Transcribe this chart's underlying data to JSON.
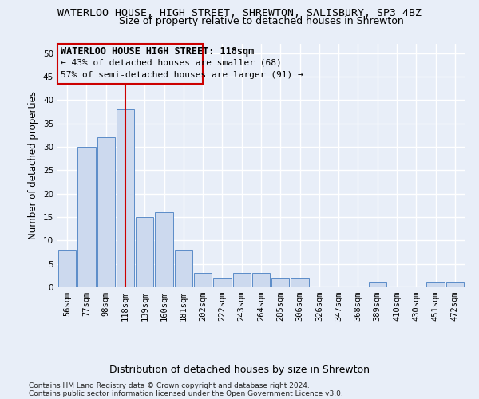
{
  "title1": "WATERLOO HOUSE, HIGH STREET, SHREWTON, SALISBURY, SP3 4BZ",
  "title2": "Size of property relative to detached houses in Shrewton",
  "xlabel": "Distribution of detached houses by size in Shrewton",
  "ylabel": "Number of detached properties",
  "footnote1": "Contains HM Land Registry data © Crown copyright and database right 2024.",
  "footnote2": "Contains public sector information licensed under the Open Government Licence v3.0.",
  "bar_labels": [
    "56sqm",
    "77sqm",
    "98sqm",
    "118sqm",
    "139sqm",
    "160sqm",
    "181sqm",
    "202sqm",
    "222sqm",
    "243sqm",
    "264sqm",
    "285sqm",
    "306sqm",
    "326sqm",
    "347sqm",
    "368sqm",
    "389sqm",
    "410sqm",
    "430sqm",
    "451sqm",
    "472sqm"
  ],
  "bar_values": [
    8,
    30,
    32,
    38,
    15,
    16,
    8,
    3,
    2,
    3,
    3,
    2,
    2,
    0,
    0,
    0,
    1,
    0,
    0,
    1,
    1
  ],
  "bar_color": "#ccd9ee",
  "bar_edge_color": "#5b8cc8",
  "highlight_index": 3,
  "highlight_line_color": "#cc0000",
  "ylim": [
    0,
    52
  ],
  "yticks": [
    0,
    5,
    10,
    15,
    20,
    25,
    30,
    35,
    40,
    45,
    50
  ],
  "annotation_line1": "WATERLOO HOUSE HIGH STREET: 118sqm",
  "annotation_line2": "← 43% of detached houses are smaller (68)",
  "annotation_line3": "57% of semi-detached houses are larger (91) →",
  "annotation_box_color": "#cc0000",
  "background_color": "#e8eef8",
  "grid_color": "#ffffff",
  "title1_fontsize": 9.5,
  "title2_fontsize": 9,
  "xlabel_fontsize": 9,
  "ylabel_fontsize": 8.5,
  "tick_fontsize": 7.5,
  "annotation_fontsize": 8.5
}
